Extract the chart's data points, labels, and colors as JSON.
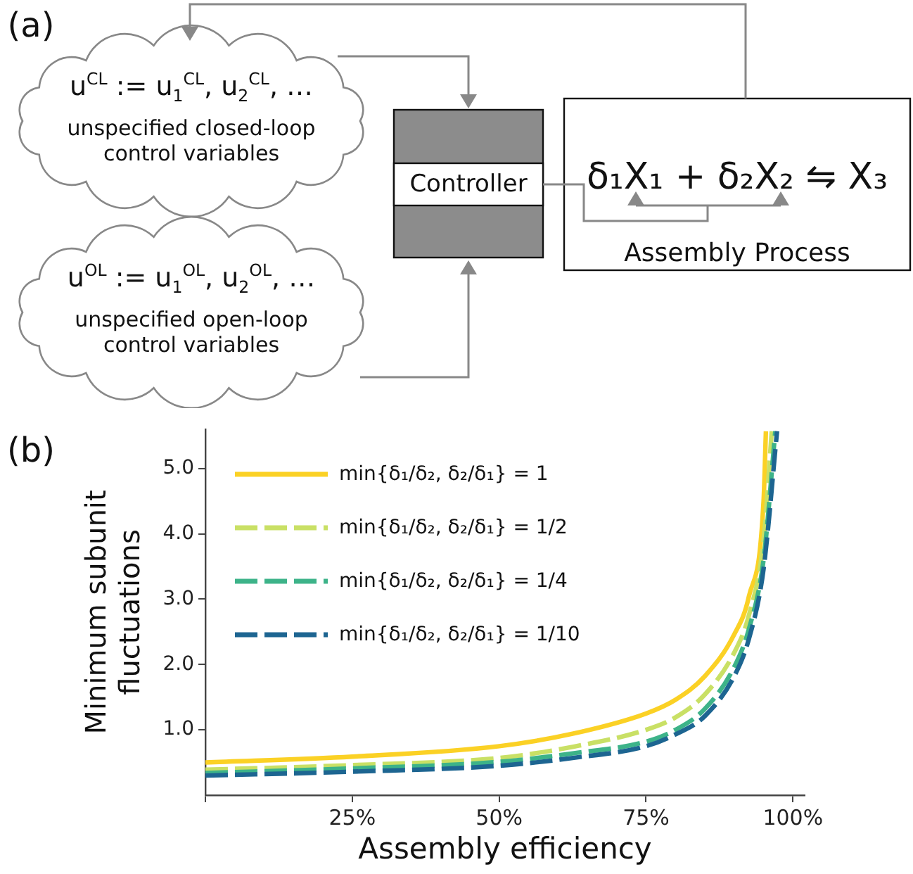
{
  "chart_data": [
    {
      "type": "other",
      "title": "(a)",
      "annotations": [
        "u$^{CL}$ := u$_{1}$$^{CL}$, u$_{2}$$^{CL}$, …",
        "unspecified closed-loop control variables",
        "u$^{OL}$ := u$_{1}$$^{OL}$, u$_{2}$$^{OL}$, …",
        "unspecified open-loop control variables",
        "Controller",
        "δ₁X₁ + δ₂X₂ ⇋ X₃",
        "Assembly Process"
      ]
    },
    {
      "type": "line",
      "title": "(b)",
      "xlabel": "Assembly efficiency",
      "ylabel": "Minimum subunit fluctuations",
      "xlim": [
        0,
        1.02
      ],
      "xticks": [
        {
          "value": 0,
          "label": null
        },
        {
          "value": 0.25,
          "label": "25%"
        },
        {
          "value": 0.5,
          "label": "50%"
        },
        {
          "value": 0.75,
          "label": "75%"
        },
        {
          "value": 1,
          "label": "100%"
        }
      ],
      "ylim": [
        0,
        5.6
      ],
      "yticks": [
        {
          "value": 1,
          "label": "1.0"
        },
        {
          "value": 2,
          "label": "2.0"
        },
        {
          "value": 3,
          "label": "3.0"
        },
        {
          "value": 4,
          "label": "4.0"
        },
        {
          "value": 5,
          "label": "5.0"
        }
      ],
      "grid": false,
      "legend": "top left",
      "marker": "none",
      "series": [
        {
          "name": "min{δ₁/δ₂, δ₂/δ₁} = 1",
          "color": "#fbd125",
          "line_style": "solid",
          "x": [
            0,
            0.25,
            0.5,
            0.625,
            0.75,
            0.8,
            0.85,
            0.9,
            0.925,
            0.95,
            0.954
          ],
          "values": [
            0.5,
            0.59,
            0.75,
            0.94,
            1.25,
            1.46,
            1.82,
            2.46,
            3.04,
            4.5,
            5.57
          ]
        },
        {
          "name": "min{δ₁/δ₂, δ₂/δ₁} = 1/2",
          "color": "#c9e065",
          "line_style": "dashed",
          "x": [
            0,
            0.25,
            0.5,
            0.625,
            0.75,
            0.8,
            0.85,
            0.9,
            0.925,
            0.95,
            0.964
          ],
          "values": [
            0.39,
            0.46,
            0.57,
            0.74,
            1.0,
            1.19,
            1.54,
            2.18,
            2.75,
            3.9,
            5.57
          ]
        },
        {
          "name": "min{δ₁/δ₂, δ₂/δ₁} = 1/4",
          "color": "#3db389",
          "line_style": "dashed",
          "x": [
            0,
            0.25,
            0.5,
            0.625,
            0.75,
            0.8,
            0.85,
            0.9,
            0.925,
            0.95,
            0.97
          ],
          "values": [
            0.34,
            0.41,
            0.51,
            0.64,
            0.82,
            1.0,
            1.32,
            1.96,
            2.54,
            3.6,
            5.57
          ]
        },
        {
          "name": "min{δ₁/δ₂, δ₂/δ₁} = 1/10",
          "color": "#1d6591",
          "line_style": "dashed",
          "x": [
            0,
            0.25,
            0.5,
            0.625,
            0.75,
            0.8,
            0.85,
            0.9,
            0.925,
            0.95,
            0.973
          ],
          "values": [
            0.3,
            0.36,
            0.45,
            0.57,
            0.75,
            0.93,
            1.21,
            1.82,
            2.39,
            3.46,
            5.57
          ]
        }
      ]
    }
  ]
}
